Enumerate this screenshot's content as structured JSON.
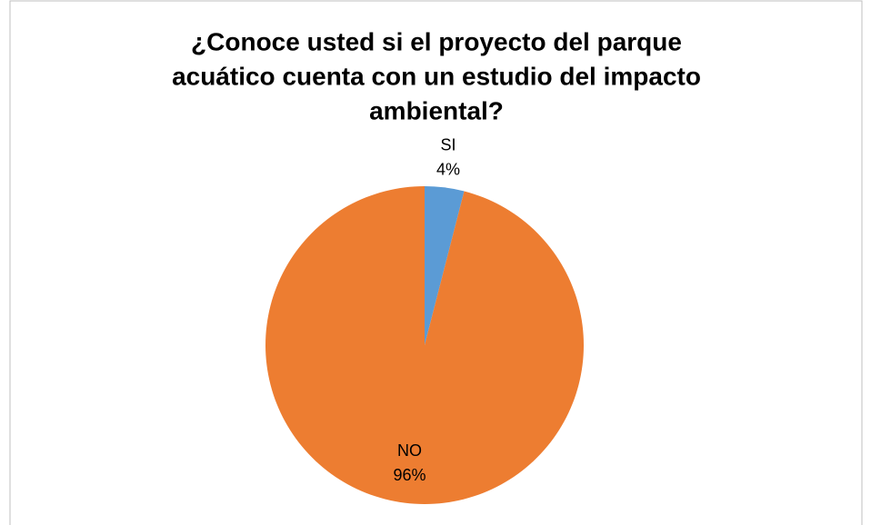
{
  "chart_data": {
    "type": "pie",
    "title": [
      "¿Conoce usted si el proyecto del parque",
      "acuático cuenta con un estudio del impacto",
      "ambiental?"
    ],
    "categories": [
      "SI",
      "NO"
    ],
    "values": [
      4,
      96
    ],
    "value_labels": [
      "4%",
      "96%"
    ],
    "colors": [
      "#5b9bd5",
      "#ed7d31"
    ]
  }
}
